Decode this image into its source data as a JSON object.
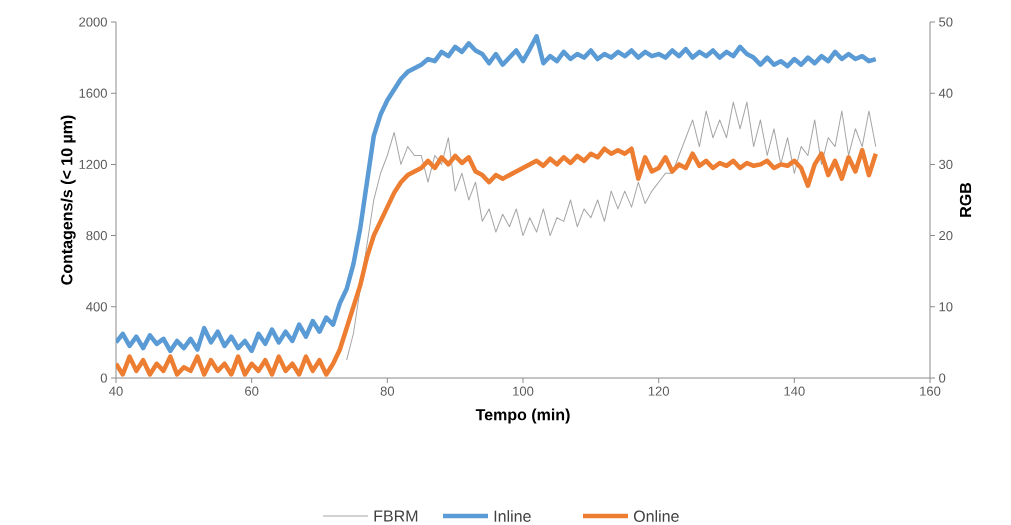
{
  "chart_data": {
    "type": "line",
    "xlabel": "Tempo (min)",
    "ylabel": "Contagens/s (< 10 µm)",
    "y2label": "RGB",
    "xlim": [
      40,
      160
    ],
    "xticks": [
      40,
      60,
      80,
      100,
      120,
      140,
      160
    ],
    "ylim": [
      0,
      2000
    ],
    "yticks": [
      0,
      400,
      800,
      1200,
      1600,
      2000
    ],
    "y2lim": [
      0,
      50
    ],
    "y2ticks": [
      0,
      10,
      20,
      30,
      40,
      50
    ],
    "legend": "bottom",
    "grid": false,
    "marker": "none",
    "line_style": "solid",
    "series": [
      {
        "name": "FBRM",
        "color": "#a5a5a5",
        "axis": "y",
        "x": [
          74,
          75,
          76,
          77,
          78,
          79,
          80,
          81,
          82,
          83,
          84,
          85,
          86,
          87,
          88,
          89,
          90,
          91,
          92,
          93,
          94,
          95,
          96,
          97,
          98,
          99,
          100,
          101,
          102,
          103,
          104,
          105,
          106,
          107,
          108,
          109,
          110,
          111,
          112,
          113,
          114,
          115,
          116,
          117,
          118,
          119,
          120,
          121,
          122,
          123,
          124,
          125,
          126,
          127,
          128,
          129,
          130,
          131,
          132,
          133,
          134,
          135,
          136,
          137,
          138,
          139,
          140,
          141,
          142,
          143,
          144,
          145,
          146,
          147,
          148,
          149,
          150,
          151,
          152
        ],
        "values": [
          100,
          250,
          500,
          750,
          1000,
          1150,
          1250,
          1380,
          1200,
          1300,
          1250,
          1250,
          1100,
          1250,
          1200,
          1350,
          1050,
          1150,
          1000,
          1100,
          880,
          950,
          820,
          920,
          850,
          950,
          800,
          900,
          820,
          950,
          800,
          900,
          880,
          1000,
          850,
          950,
          900,
          1000,
          880,
          1050,
          950,
          1050,
          960,
          1100,
          980,
          1050,
          1100,
          1150,
          1150,
          1250,
          1350,
          1450,
          1300,
          1500,
          1350,
          1450,
          1350,
          1550,
          1400,
          1550,
          1300,
          1450,
          1250,
          1400,
          1200,
          1350,
          1150,
          1300,
          1250,
          1450,
          1200,
          1350,
          1300,
          1500,
          1250,
          1400,
          1300,
          1500,
          1300
        ]
      },
      {
        "name": "Inline",
        "color": "#5b9bd5",
        "axis": "y2",
        "x": [
          40,
          41,
          42,
          43,
          44,
          45,
          46,
          47,
          48,
          49,
          50,
          51,
          52,
          53,
          54,
          55,
          56,
          57,
          58,
          59,
          60,
          61,
          62,
          63,
          64,
          65,
          66,
          67,
          68,
          69,
          70,
          71,
          72,
          73,
          74,
          75,
          76,
          77,
          78,
          79,
          80,
          81,
          82,
          83,
          84,
          85,
          86,
          87,
          88,
          89,
          90,
          91,
          92,
          93,
          94,
          95,
          96,
          97,
          98,
          99,
          100,
          101,
          102,
          103,
          104,
          105,
          106,
          107,
          108,
          109,
          110,
          111,
          112,
          113,
          114,
          115,
          116,
          117,
          118,
          119,
          120,
          121,
          122,
          123,
          124,
          125,
          126,
          127,
          128,
          129,
          130,
          131,
          132,
          133,
          134,
          135,
          136,
          137,
          138,
          139,
          140,
          141,
          142,
          143,
          144,
          145,
          146,
          147,
          148,
          149,
          150,
          151,
          152
        ],
        "values": [
          5,
          6.2,
          4.5,
          5.8,
          4.2,
          6,
          4.8,
          5.5,
          3.8,
          5.2,
          4.2,
          5.5,
          4,
          7,
          5,
          6.5,
          4.5,
          5.8,
          4.2,
          5.2,
          3.8,
          6.2,
          4.8,
          6.8,
          5,
          6.5,
          5.2,
          7.5,
          5.8,
          8,
          6.5,
          8.5,
          7.5,
          10.5,
          12.5,
          16,
          21,
          27.5,
          34,
          37,
          39,
          40.5,
          42,
          43,
          43.5,
          44,
          44.8,
          44.5,
          45.8,
          45.2,
          46.5,
          45.8,
          47,
          46,
          45.5,
          44.2,
          45.5,
          44,
          45,
          46,
          44.5,
          46.2,
          48,
          44.2,
          45.2,
          44.5,
          45.8,
          44.8,
          45.5,
          45,
          46,
          44.8,
          45.5,
          45,
          45.8,
          45.2,
          46,
          45,
          45.8,
          45.2,
          45.5,
          45,
          46,
          45.2,
          46.2,
          45,
          45.8,
          45.2,
          46,
          45,
          45.8,
          45.2,
          46.5,
          45.5,
          45,
          44,
          45,
          44,
          44.5,
          43.8,
          44.8,
          44,
          45,
          44.2,
          45.2,
          44.5,
          45.8,
          44.8,
          45.5,
          44.8,
          45.2,
          44.5,
          44.8
        ]
      },
      {
        "name": "Online",
        "color": "#ed7d31",
        "axis": "y2",
        "x": [
          40,
          41,
          42,
          43,
          44,
          45,
          46,
          47,
          48,
          49,
          50,
          51,
          52,
          53,
          54,
          55,
          56,
          57,
          58,
          59,
          60,
          61,
          62,
          63,
          64,
          65,
          66,
          67,
          68,
          69,
          70,
          71,
          72,
          73,
          74,
          75,
          76,
          77,
          78,
          79,
          80,
          81,
          82,
          83,
          84,
          85,
          86,
          87,
          88,
          89,
          90,
          91,
          92,
          93,
          94,
          95,
          96,
          97,
          98,
          99,
          100,
          101,
          102,
          103,
          104,
          105,
          106,
          107,
          108,
          109,
          110,
          111,
          112,
          113,
          114,
          115,
          116,
          117,
          118,
          119,
          120,
          121,
          122,
          123,
          124,
          125,
          126,
          127,
          128,
          129,
          130,
          131,
          132,
          133,
          134,
          135,
          136,
          137,
          138,
          139,
          140,
          141,
          142,
          143,
          144,
          145,
          146,
          147,
          148,
          149,
          150,
          151,
          152
        ],
        "values": [
          2,
          0.5,
          3,
          1,
          2.5,
          0.5,
          2,
          1,
          3,
          0.5,
          1.5,
          1,
          3,
          0.5,
          2.5,
          1,
          2,
          0.5,
          3,
          0.5,
          2,
          1,
          2.5,
          0.5,
          3,
          1,
          2,
          0.5,
          3,
          1,
          2.5,
          0.5,
          2,
          4,
          7,
          10,
          13,
          17,
          20,
          22,
          24,
          26,
          27.5,
          28.5,
          29,
          29.5,
          30.5,
          29.5,
          31,
          30,
          31.2,
          30.2,
          31,
          29,
          28.5,
          27.5,
          28.5,
          28,
          28.5,
          29,
          29.5,
          30,
          30.5,
          29.8,
          30.8,
          30,
          31,
          30.2,
          31.2,
          30.5,
          31.5,
          31,
          32.2,
          31.5,
          32,
          31.5,
          32.2,
          28,
          31,
          29,
          29.5,
          31,
          29,
          30,
          29.5,
          31.5,
          29.8,
          30.5,
          29.5,
          30.2,
          29.8,
          30.5,
          29.5,
          30.2,
          29.8,
          30,
          30.5,
          29.5,
          30,
          29.8,
          30.5,
          29.5,
          27,
          30,
          31.5,
          28.5,
          30.5,
          28,
          31,
          29,
          32,
          28.5,
          31.5
        ]
      }
    ]
  }
}
